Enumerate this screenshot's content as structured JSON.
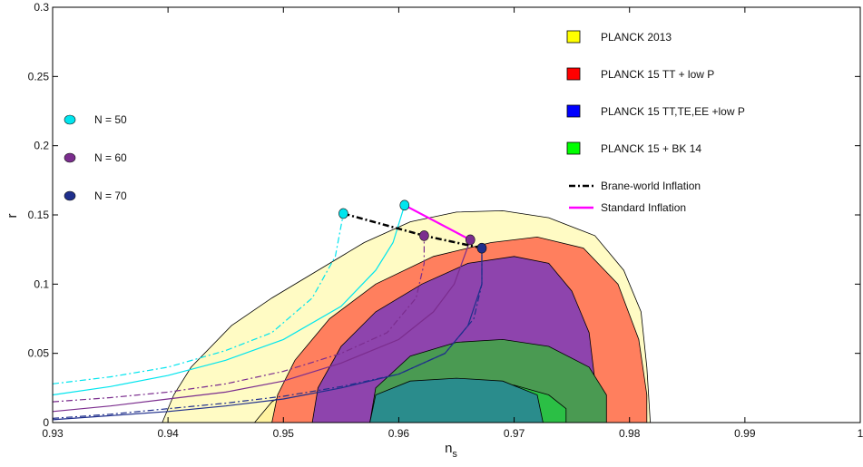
{
  "chart_data": {
    "type": "scatter",
    "xlabel": "n",
    "xlabel_sub": "s",
    "ylabel": "r",
    "xlim": [
      0.93,
      1.0
    ],
    "ylim": [
      0,
      0.3
    ],
    "xticks": [
      "0.93",
      "0.94",
      "0.95",
      "0.96",
      "0.97",
      "0.98",
      "0.99",
      "1"
    ],
    "yticks": [
      "0",
      "0.05",
      "0.1",
      "0.15",
      "0.2",
      "0.25",
      "0.3"
    ],
    "grid": false,
    "legend_constraints": [
      {
        "label": "PLANCK 2013",
        "color": "#ffff00"
      },
      {
        "label": "PLANCK 15 TT + low P",
        "color": "#ff0000"
      },
      {
        "label": "PLANCK 15 TT,TE,EE +low P",
        "color": "#0000ff"
      },
      {
        "label": "PLANCK 15 + BK 14",
        "color": "#00ff00"
      }
    ],
    "legend_models": [
      {
        "label": "Brane-world Inflation",
        "color": "#000000",
        "style": "dashdot"
      },
      {
        "label": "Standard Inflation",
        "color": "#ff00ff",
        "style": "solid"
      }
    ],
    "legend_efolds": [
      {
        "label": "N = 50",
        "color": "#00e5ee"
      },
      {
        "label": "N = 60",
        "color": "#7b2d8e"
      },
      {
        "label": "N = 70",
        "color": "#1f2f8c"
      }
    ],
    "contours": [
      {
        "name": "PLANCK 2013 (95%)",
        "fill": "#fffbc4",
        "points": [
          [
            0.9395,
            0
          ],
          [
            0.9405,
            0.02
          ],
          [
            0.942,
            0.04
          ],
          [
            0.9455,
            0.07
          ],
          [
            0.949,
            0.09
          ],
          [
            0.953,
            0.11
          ],
          [
            0.957,
            0.13
          ],
          [
            0.961,
            0.145
          ],
          [
            0.965,
            0.152
          ],
          [
            0.969,
            0.153
          ],
          [
            0.973,
            0.148
          ],
          [
            0.977,
            0.135
          ],
          [
            0.9795,
            0.11
          ],
          [
            0.981,
            0.08
          ],
          [
            0.9815,
            0.04
          ],
          [
            0.9818,
            0
          ]
        ]
      },
      {
        "name": "PLANCK 2013 (68%)",
        "fill": "#fff3a0",
        "points": [
          [
            0.9475,
            0
          ],
          [
            0.949,
            0.015
          ],
          [
            0.952,
            0.03
          ],
          [
            0.956,
            0.04
          ],
          [
            0.96,
            0.042
          ],
          [
            0.964,
            0.04
          ],
          [
            0.968,
            0.03
          ],
          [
            0.972,
            0.015
          ],
          [
            0.9735,
            0
          ]
        ]
      },
      {
        "name": "PLANCK 15 TT + low P (95%)",
        "fill": "#ff7f5e",
        "points": [
          [
            0.949,
            0
          ],
          [
            0.9495,
            0.02
          ],
          [
            0.951,
            0.045
          ],
          [
            0.954,
            0.075
          ],
          [
            0.958,
            0.1
          ],
          [
            0.963,
            0.12
          ],
          [
            0.968,
            0.13
          ],
          [
            0.972,
            0.134
          ],
          [
            0.976,
            0.126
          ],
          [
            0.979,
            0.1
          ],
          [
            0.9808,
            0.06
          ],
          [
            0.9815,
            0.02
          ],
          [
            0.9815,
            0
          ]
        ]
      },
      {
        "name": "PLANCK 15 TT + low P (68%)",
        "fill": "#c41e3a",
        "points": [
          [
            0.9565,
            0
          ],
          [
            0.957,
            0.012
          ],
          [
            0.959,
            0.02
          ],
          [
            0.962,
            0.022
          ],
          [
            0.965,
            0.02
          ],
          [
            0.9675,
            0.01
          ],
          [
            0.968,
            0
          ]
        ]
      },
      {
        "name": "PLANCK 15 TT,TE,EE +low P (95%)",
        "fill": "#8e44ad",
        "points": [
          [
            0.9525,
            0
          ],
          [
            0.953,
            0.025
          ],
          [
            0.955,
            0.055
          ],
          [
            0.958,
            0.08
          ],
          [
            0.962,
            0.1
          ],
          [
            0.966,
            0.115
          ],
          [
            0.97,
            0.12
          ],
          [
            0.973,
            0.115
          ],
          [
            0.975,
            0.095
          ],
          [
            0.9765,
            0.065
          ],
          [
            0.977,
            0.03
          ],
          [
            0.977,
            0
          ]
        ]
      },
      {
        "name": "PLANCK 15 TT,TE,EE +low P (68%)",
        "fill": "#2929b8",
        "points": [
          [
            0.9575,
            0
          ],
          [
            0.958,
            0.012
          ],
          [
            0.96,
            0.02
          ],
          [
            0.963,
            0.022
          ],
          [
            0.966,
            0.02
          ],
          [
            0.968,
            0.012
          ],
          [
            0.9685,
            0
          ]
        ]
      },
      {
        "name": "PLANCK 15 + BK 14 (95%)",
        "fill": "#4a9a52",
        "points": [
          [
            0.9575,
            0
          ],
          [
            0.958,
            0.025
          ],
          [
            0.961,
            0.048
          ],
          [
            0.965,
            0.058
          ],
          [
            0.969,
            0.06
          ],
          [
            0.973,
            0.055
          ],
          [
            0.9765,
            0.04
          ],
          [
            0.978,
            0.02
          ],
          [
            0.978,
            0
          ]
        ]
      },
      {
        "name": "PLANCK 15 + BK 14 (68%)",
        "fill": "#2bbf45",
        "points": [
          [
            0.9615,
            0
          ],
          [
            0.962,
            0.015
          ],
          [
            0.964,
            0.024
          ],
          [
            0.967,
            0.028
          ],
          [
            0.97,
            0.027
          ],
          [
            0.973,
            0.02
          ],
          [
            0.9745,
            0.01
          ],
          [
            0.9745,
            0
          ]
        ]
      },
      {
        "name": "overlap band",
        "fill": "#2a8c8c",
        "points": [
          [
            0.9575,
            0
          ],
          [
            0.958,
            0.02
          ],
          [
            0.961,
            0.03
          ],
          [
            0.965,
            0.032
          ],
          [
            0.969,
            0.03
          ],
          [
            0.972,
            0.02
          ],
          [
            0.9725,
            0
          ]
        ]
      }
    ],
    "curves": [
      {
        "name": "N = 50 solid",
        "color": "#00e5ee",
        "style": "solid",
        "points": [
          [
            0.93,
            0.02
          ],
          [
            0.935,
            0.026
          ],
          [
            0.94,
            0.034
          ],
          [
            0.945,
            0.045
          ],
          [
            0.95,
            0.06
          ],
          [
            0.955,
            0.084
          ],
          [
            0.958,
            0.11
          ],
          [
            0.9595,
            0.13
          ],
          [
            0.9605,
            0.157
          ]
        ]
      },
      {
        "name": "N = 50 dashed",
        "color": "#00e5ee",
        "style": "dashdot",
        "points": [
          [
            0.93,
            0.028
          ],
          [
            0.935,
            0.033
          ],
          [
            0.94,
            0.04
          ],
          [
            0.945,
            0.052
          ],
          [
            0.949,
            0.065
          ],
          [
            0.9525,
            0.09
          ],
          [
            0.9545,
            0.12
          ],
          [
            0.9552,
            0.151
          ]
        ]
      },
      {
        "name": "N = 60 solid",
        "color": "#7b2d8e",
        "style": "solid",
        "points": [
          [
            0.93,
            0.008
          ],
          [
            0.935,
            0.012
          ],
          [
            0.94,
            0.017
          ],
          [
            0.945,
            0.022
          ],
          [
            0.95,
            0.03
          ],
          [
            0.955,
            0.043
          ],
          [
            0.96,
            0.06
          ],
          [
            0.963,
            0.08
          ],
          [
            0.9648,
            0.1
          ],
          [
            0.9662,
            0.132
          ]
        ]
      },
      {
        "name": "N = 60 dashed",
        "color": "#7b2d8e",
        "style": "dashdot",
        "points": [
          [
            0.93,
            0.015
          ],
          [
            0.935,
            0.018
          ],
          [
            0.94,
            0.022
          ],
          [
            0.945,
            0.028
          ],
          [
            0.95,
            0.037
          ],
          [
            0.955,
            0.05
          ],
          [
            0.959,
            0.065
          ],
          [
            0.9615,
            0.09
          ],
          [
            0.9622,
            0.115
          ],
          [
            0.9622,
            0.135
          ]
        ]
      },
      {
        "name": "N = 70 solid",
        "color": "#1f2f8c",
        "style": "solid",
        "points": [
          [
            0.93,
            0.002
          ],
          [
            0.935,
            0.005
          ],
          [
            0.94,
            0.008
          ],
          [
            0.945,
            0.012
          ],
          [
            0.95,
            0.017
          ],
          [
            0.955,
            0.025
          ],
          [
            0.96,
            0.035
          ],
          [
            0.964,
            0.05
          ],
          [
            0.966,
            0.07
          ],
          [
            0.9672,
            0.1
          ],
          [
            0.9672,
            0.126
          ]
        ]
      },
      {
        "name": "N = 70 dashed",
        "color": "#1f2f8c",
        "style": "dashdot",
        "points": [
          [
            0.93,
            0.003
          ],
          [
            0.935,
            0.006
          ],
          [
            0.94,
            0.01
          ],
          [
            0.945,
            0.014
          ],
          [
            0.95,
            0.019
          ],
          [
            0.955,
            0.026
          ],
          [
            0.96,
            0.035
          ],
          [
            0.964,
            0.05
          ],
          [
            0.9665,
            0.075
          ],
          [
            0.9672,
            0.1
          ],
          [
            0.9672,
            0.126
          ]
        ]
      },
      {
        "name": "Brane-world Inflation",
        "color": "#000000",
        "style": "dashdot",
        "width": 2.5,
        "points": [
          [
            0.9552,
            0.151
          ],
          [
            0.9622,
            0.135
          ],
          [
            0.9672,
            0.126
          ]
        ]
      },
      {
        "name": "Standard Inflation",
        "color": "#ff00ff",
        "style": "solid",
        "width": 2.2,
        "points": [
          [
            0.9605,
            0.157
          ],
          [
            0.9662,
            0.132
          ]
        ]
      }
    ],
    "markers": [
      {
        "name": "N = 50 brane",
        "color": "#00e5ee",
        "x": 0.9552,
        "y": 0.151
      },
      {
        "name": "N = 50 standard",
        "color": "#00e5ee",
        "x": 0.9605,
        "y": 0.157
      },
      {
        "name": "N = 60 brane",
        "color": "#7b2d8e",
        "x": 0.9622,
        "y": 0.135
      },
      {
        "name": "N = 60 standard",
        "color": "#7b2d8e",
        "x": 0.9662,
        "y": 0.132
      },
      {
        "name": "N = 70 brane",
        "color": "#1f2f8c",
        "x": 0.9672,
        "y": 0.126
      }
    ]
  }
}
